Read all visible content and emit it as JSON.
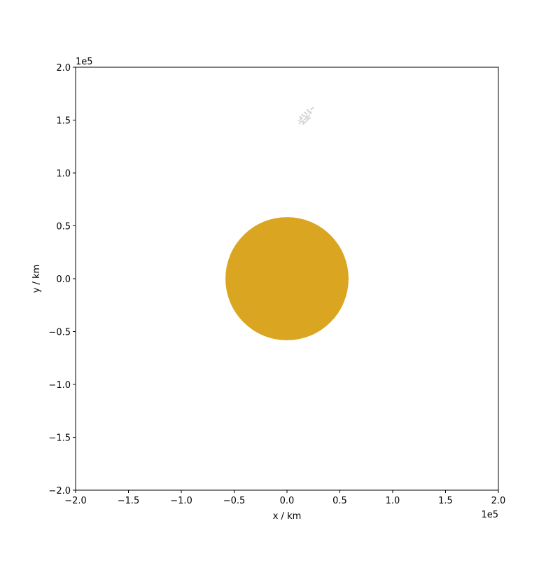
{
  "chart_data": {
    "type": "scatter",
    "title": "",
    "xlabel": "x / km",
    "ylabel": "y / km",
    "xlim": [
      -200000,
      200000
    ],
    "ylim": [
      -200000,
      200000
    ],
    "x_offset_label": "1e5",
    "y_offset_label": "1e5",
    "x_ticks": [
      -200000,
      -150000,
      -100000,
      -50000,
      0,
      50000,
      100000,
      150000,
      200000
    ],
    "y_ticks": [
      -200000,
      -150000,
      -100000,
      -50000,
      0,
      50000,
      100000,
      150000,
      200000
    ],
    "x_tick_labels": [
      "−2.0",
      "−1.5",
      "−1.0",
      "−0.5",
      "0.0",
      "0.5",
      "1.0",
      "1.5",
      "2.0"
    ],
    "y_tick_labels": [
      "−2.0",
      "−1.5",
      "−1.0",
      "−0.5",
      "0.0",
      "0.5",
      "1.0",
      "1.5",
      "2.0"
    ],
    "grid": false,
    "planet": {
      "center": [
        0,
        0
      ],
      "radius": 58232,
      "color": "#DAA520"
    },
    "particles": {
      "color": "#c8c8c8",
      "points": [
        [
          12000,
          147000
        ],
        [
          13500,
          148500
        ],
        [
          15000,
          149000
        ],
        [
          16500,
          150500
        ],
        [
          18000,
          151500
        ],
        [
          19500,
          153000
        ],
        [
          21000,
          154500
        ],
        [
          22500,
          156500
        ],
        [
          14000,
          152000
        ],
        [
          16000,
          154000
        ],
        [
          18500,
          156000
        ],
        [
          20500,
          158000
        ],
        [
          23000,
          160500
        ],
        [
          24500,
          161500
        ],
        [
          11500,
          149500
        ],
        [
          13000,
          151000
        ],
        [
          15500,
          146500
        ],
        [
          17500,
          148000
        ],
        [
          19000,
          149500
        ],
        [
          20000,
          151000
        ],
        [
          21500,
          152000
        ],
        [
          17000,
          157000
        ],
        [
          19500,
          159500
        ],
        [
          22000,
          157500
        ],
        [
          14500,
          155000
        ],
        [
          12500,
          153000
        ],
        [
          16000,
          147500
        ],
        [
          18000,
          153500
        ]
      ]
    }
  }
}
